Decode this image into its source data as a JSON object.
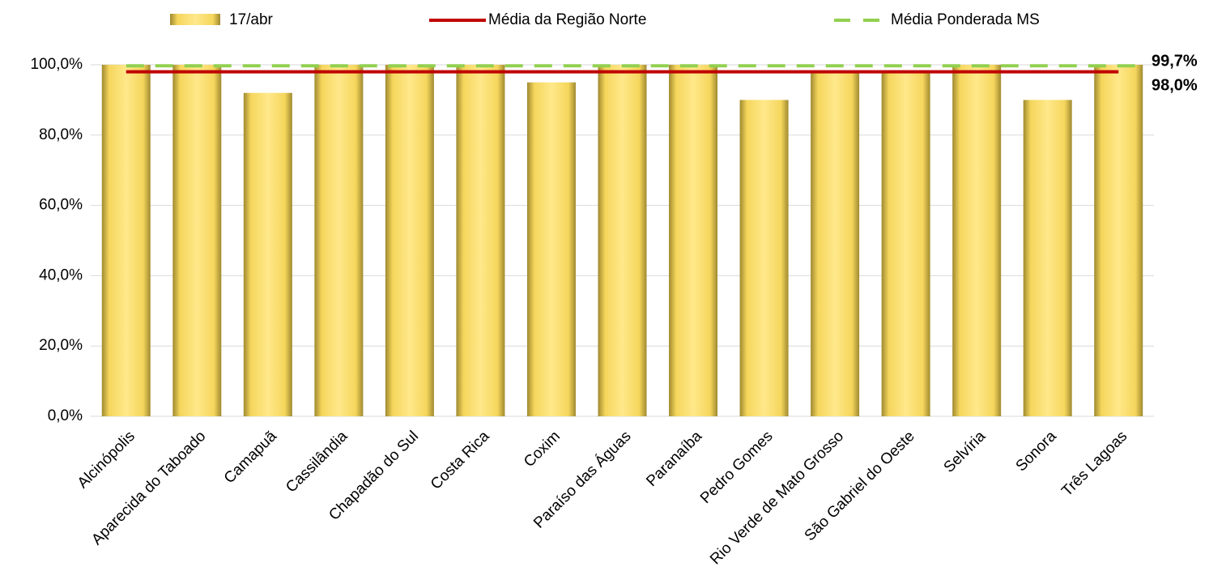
{
  "chart_data": {
    "type": "bar",
    "categories": [
      "Alcinópolis",
      "Aparecida do Taboado",
      "Camapuã",
      "Cassilândia",
      "Chapadão do Sul",
      "Costa Rica",
      "Coxim",
      "Paraíso das Águas",
      "Paranaíba",
      "Pedro Gomes",
      "Rio Verde de Mato Grosso",
      "São Gabriel do Oeste",
      "Selvíria",
      "Sonora",
      "Três Lagoas"
    ],
    "series": [
      {
        "name": "17/abr",
        "color": "#f5d65c",
        "values": [
          100,
          100,
          92,
          100,
          100,
          100,
          95,
          100,
          100,
          90,
          98,
          98,
          100,
          90,
          100
        ]
      }
    ],
    "lines": [
      {
        "name": "Média da Região Norte",
        "color": "#c00000",
        "dashed": false,
        "value": 98.0,
        "value_label": "98,0%"
      },
      {
        "name": "Média Ponderada MS",
        "color": "#92d050",
        "dashed": true,
        "value": 99.7,
        "value_label": "99,7%"
      }
    ],
    "ylim": [
      0,
      100
    ],
    "yticks": [
      {
        "value": 0,
        "label": "0,0%"
      },
      {
        "value": 20,
        "label": "20,0%"
      },
      {
        "value": 40,
        "label": "40,0%"
      },
      {
        "value": 60,
        "label": "60,0%"
      },
      {
        "value": 80,
        "label": "80,0%"
      },
      {
        "value": 100,
        "label": "100,0%"
      }
    ],
    "grid": true
  }
}
